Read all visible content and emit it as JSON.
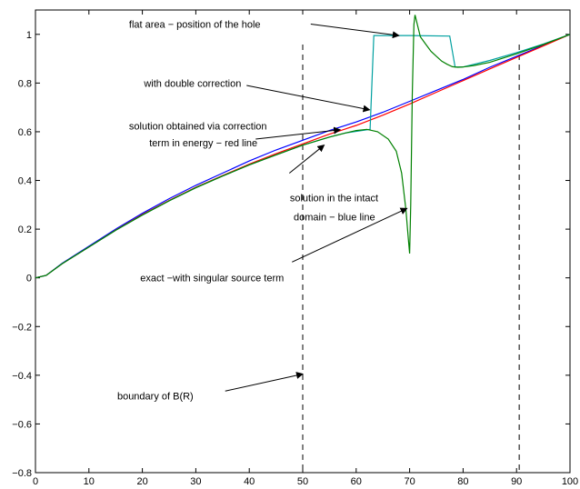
{
  "chart_data": {
    "type": "line",
    "title": "",
    "xlabel": "",
    "ylabel": "",
    "xlim": [
      0,
      100
    ],
    "ylim": [
      -0.8,
      1.1
    ],
    "grid": false,
    "legend": "none",
    "x_ticks": [
      0,
      10,
      20,
      30,
      40,
      50,
      60,
      70,
      80,
      90,
      100
    ],
    "y_ticks": [
      -0.8,
      -0.6,
      -0.4,
      -0.2,
      0,
      0.2,
      0.4,
      0.6,
      0.8,
      1
    ],
    "y_tick_labels": [
      "−0.8",
      "−0.6",
      "−0.4",
      "−0.2",
      "0",
      "0.2",
      "0.4",
      "0.6",
      "0.8",
      "1"
    ],
    "vertical_dashed_lines": [
      50,
      90.5
    ],
    "series": [
      {
        "color": "#0000ff",
        "points": [
          [
            0,
            0
          ],
          [
            2,
            0.01
          ],
          [
            5,
            0.06
          ],
          [
            10,
            0.13
          ],
          [
            15,
            0.2
          ],
          [
            20,
            0.265
          ],
          [
            25,
            0.325
          ],
          [
            30,
            0.38
          ],
          [
            35,
            0.43
          ],
          [
            40,
            0.48
          ],
          [
            45,
            0.525
          ],
          [
            50,
            0.565
          ],
          [
            55,
            0.605
          ],
          [
            60,
            0.64
          ],
          [
            65,
            0.68
          ],
          [
            70,
            0.725
          ],
          [
            75,
            0.77
          ],
          [
            80,
            0.815
          ],
          [
            85,
            0.865
          ],
          [
            90,
            0.91
          ],
          [
            95,
            0.955
          ],
          [
            100,
            1.0
          ]
        ]
      },
      {
        "color": "#ff0000",
        "points": [
          [
            0,
            0
          ],
          [
            2,
            0.01
          ],
          [
            5,
            0.058
          ],
          [
            10,
            0.127
          ],
          [
            15,
            0.196
          ],
          [
            20,
            0.26
          ],
          [
            25,
            0.318
          ],
          [
            30,
            0.372
          ],
          [
            35,
            0.42
          ],
          [
            40,
            0.467
          ],
          [
            45,
            0.51
          ],
          [
            50,
            0.55
          ],
          [
            55,
            0.59
          ],
          [
            60,
            0.626
          ],
          [
            65,
            0.668
          ],
          [
            70,
            0.714
          ],
          [
            75,
            0.762
          ],
          [
            80,
            0.81
          ],
          [
            85,
            0.858
          ],
          [
            90,
            0.905
          ],
          [
            95,
            0.952
          ],
          [
            100,
            1.0
          ]
        ]
      },
      {
        "color": "#00a0a0",
        "points": [
          [
            0,
            0
          ],
          [
            2,
            0.01
          ],
          [
            5,
            0.058
          ],
          [
            10,
            0.127
          ],
          [
            15,
            0.195
          ],
          [
            20,
            0.258
          ],
          [
            25,
            0.316
          ],
          [
            30,
            0.37
          ],
          [
            35,
            0.418
          ],
          [
            40,
            0.464
          ],
          [
            45,
            0.505
          ],
          [
            50,
            0.545
          ],
          [
            55,
            0.578
          ],
          [
            58,
            0.595
          ],
          [
            61,
            0.605
          ],
          [
            62.6,
            0.61
          ],
          [
            63.3,
            0.995
          ],
          [
            70,
            0.995
          ],
          [
            77.5,
            0.993
          ],
          [
            78.5,
            0.866
          ],
          [
            80,
            0.866
          ],
          [
            85,
            0.893
          ],
          [
            90,
            0.925
          ],
          [
            95,
            0.96
          ],
          [
            100,
            1.0
          ]
        ]
      },
      {
        "color": "#008000",
        "points": [
          [
            0,
            0
          ],
          [
            2,
            0.01
          ],
          [
            5,
            0.058
          ],
          [
            10,
            0.127
          ],
          [
            15,
            0.195
          ],
          [
            20,
            0.258
          ],
          [
            25,
            0.316
          ],
          [
            30,
            0.37
          ],
          [
            35,
            0.418
          ],
          [
            40,
            0.464
          ],
          [
            45,
            0.505
          ],
          [
            50,
            0.545
          ],
          [
            55,
            0.578
          ],
          [
            58,
            0.595
          ],
          [
            60,
            0.605
          ],
          [
            62,
            0.61
          ],
          [
            64,
            0.6
          ],
          [
            66,
            0.57
          ],
          [
            67.5,
            0.52
          ],
          [
            68.5,
            0.43
          ],
          [
            69.3,
            0.28
          ],
          [
            69.8,
            0.15
          ],
          [
            70,
            0.1
          ],
          [
            70.2,
            0.3
          ],
          [
            70.5,
            0.75
          ],
          [
            70.8,
            1.04
          ],
          [
            71,
            1.08
          ],
          [
            72,
            0.99
          ],
          [
            73,
            0.96
          ],
          [
            74,
            0.93
          ],
          [
            75,
            0.91
          ],
          [
            76,
            0.89
          ],
          [
            77,
            0.877
          ],
          [
            78,
            0.867
          ],
          [
            79,
            0.865
          ],
          [
            80,
            0.866
          ],
          [
            82,
            0.872
          ],
          [
            85,
            0.885
          ],
          [
            90,
            0.92
          ],
          [
            95,
            0.958
          ],
          [
            100,
            1.0
          ]
        ]
      }
    ],
    "annotations": [
      {
        "text": "flat area − position of the hole",
        "text_x": 17.5,
        "text_y": 1.0,
        "text_y2": 1.042,
        "arrow_from": [
          51.5,
          1.042
        ],
        "arrow_to": [
          68,
          0.995
        ]
      },
      {
        "text": "with double correction",
        "text_x": 20.3,
        "text_y": 0.8,
        "text_y2": 0.8,
        "arrow_from": [
          39.5,
          0.79
        ],
        "arrow_to": [
          62.5,
          0.69
        ]
      },
      {
        "text": "solution obtained via correction",
        "text_x": 17.5,
        "text_y": 0.63,
        "text_y2": 0.625,
        "arrow_from": [
          41.2,
          0.57
        ],
        "arrow_to": [
          57,
          0.608
        ]
      },
      {
        "text": "term in energy − red line",
        "text_x": 21.3,
        "text_y": 0.55,
        "text_y2": 0.555
      },
      {
        "text": "solution in the intact",
        "text_x": 47.6,
        "text_y": 0.33,
        "text_y2": 0.33,
        "arrow_from": [
          47.5,
          0.43
        ],
        "arrow_to": [
          54,
          0.545
        ]
      },
      {
        "text": "domain − blue line",
        "text_x": 48.3,
        "text_y": 0.25,
        "text_y2": 0.25
      },
      {
        "text": "exact −with singular source term",
        "text_x": 19.6,
        "text_y": -0.01,
        "text_y2": 0.0,
        "arrow_from": [
          48,
          0.065
        ],
        "arrow_to": [
          69.5,
          0.285
        ]
      },
      {
        "text": "boundary of B(R)",
        "text_x": 15.3,
        "text_y": -0.48,
        "text_y2": -0.485,
        "arrow_from": [
          35.5,
          -0.465
        ],
        "arrow_to": [
          50,
          -0.395
        ]
      }
    ]
  }
}
